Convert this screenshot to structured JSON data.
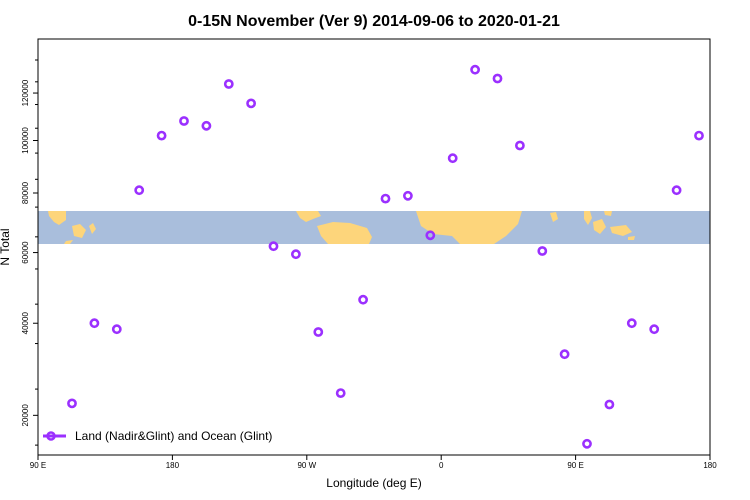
{
  "chart_data": {
    "type": "scatter",
    "title": "0-15N November (Ver 9)   2014-09-06 to 2020-01-21",
    "xlabel": "Longitude (deg E)",
    "ylabel": "N Total",
    "x_ticks": [
      "90 E",
      "180",
      "90 W",
      "0",
      "90 E",
      "180"
    ],
    "y_ticks": [
      20000,
      40000,
      60000,
      80000,
      100000,
      120000
    ],
    "y_scale": "sqrt",
    "ylim": [
      13500,
      145000
    ],
    "series": [
      {
        "name": "Land (Nadir&Glint) and Ocean (Glint)",
        "color": "#9b30ff",
        "y": [
          22200,
          40000,
          38500,
          81000,
          102000,
          108000,
          106000,
          124000,
          115500,
          62000,
          59500,
          37800,
          24200,
          46200,
          78000,
          79000,
          65500,
          93000,
          130500,
          126500,
          98000,
          60500,
          32500,
          15200,
          22000,
          40000,
          38500,
          81000,
          102000
        ]
      }
    ],
    "legend_position": "bottom-left",
    "map_colors": {
      "ocean": "#a9bedc",
      "land": "#fdd57b"
    }
  }
}
